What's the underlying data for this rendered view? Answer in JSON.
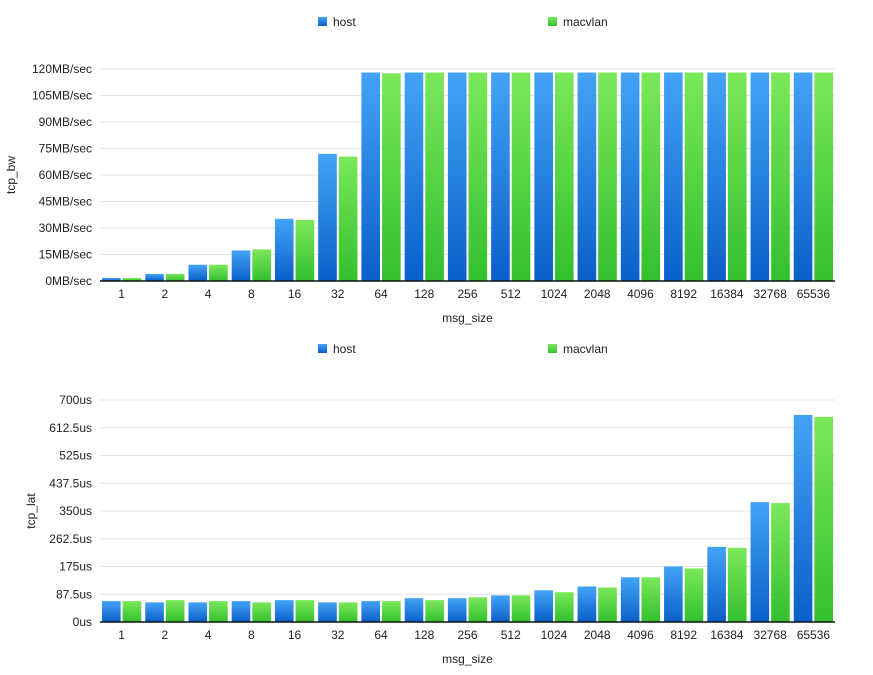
{
  "colors": {
    "host_top": "#44a3f5",
    "host_bottom": "#0a5fc9",
    "macvlan_top": "#7ae85a",
    "macvlan_bottom": "#33c02e",
    "grid": "#e4e4e4",
    "axis": "#111111"
  },
  "chart_data": [
    {
      "type": "bar",
      "xlabel": "msg_size",
      "ylabel": "tcp_bw",
      "ylim": [
        0,
        120
      ],
      "unit": "MB/sec",
      "grid": true,
      "legend_placement": "top",
      "yticks": [
        "0MB/sec",
        "15MB/sec",
        "30MB/sec",
        "45MB/sec",
        "60MB/sec",
        "75MB/sec",
        "90MB/sec",
        "105MB/sec",
        "120MB/sec"
      ],
      "categories": [
        "1",
        "2",
        "4",
        "8",
        "16",
        "32",
        "64",
        "128",
        "256",
        "512",
        "1024",
        "2048",
        "4096",
        "8192",
        "16384",
        "32768",
        "65536"
      ],
      "series": [
        {
          "name": "host",
          "values": [
            1.7,
            4,
            9.2,
            17.3,
            35.2,
            72,
            118,
            118,
            118,
            118,
            118,
            118,
            118,
            118,
            118,
            118,
            118
          ]
        },
        {
          "name": "macvlan",
          "values": [
            1.7,
            4,
            9.2,
            17.9,
            34.6,
            70.4,
            117.6,
            118,
            118,
            118,
            118,
            118,
            118,
            118,
            118,
            118,
            118
          ]
        }
      ]
    },
    {
      "type": "bar",
      "xlabel": "msg_size",
      "ylabel": "tcp_lat",
      "ylim": [
        0,
        700
      ],
      "unit": "us",
      "grid": true,
      "legend_placement": "top",
      "yticks": [
        "0us",
        "87.5us",
        "175us",
        "262.5us",
        "350us",
        "437.5us",
        "525us",
        "612.5us",
        "700us"
      ],
      "categories": [
        "1",
        "2",
        "4",
        "8",
        "16",
        "32",
        "64",
        "128",
        "256",
        "512",
        "1024",
        "2048",
        "4096",
        "8192",
        "16384",
        "32768",
        "65536"
      ],
      "series": [
        {
          "name": "host",
          "values": [
            66,
            62,
            62,
            66,
            69,
            62,
            66,
            75,
            75,
            84,
            100,
            112,
            141,
            175,
            237,
            378,
            653
          ]
        },
        {
          "name": "macvlan",
          "values": [
            66,
            69,
            66,
            62,
            69,
            62,
            66,
            69,
            78,
            84,
            94,
            109,
            141,
            169,
            234,
            375,
            647
          ]
        }
      ]
    }
  ]
}
